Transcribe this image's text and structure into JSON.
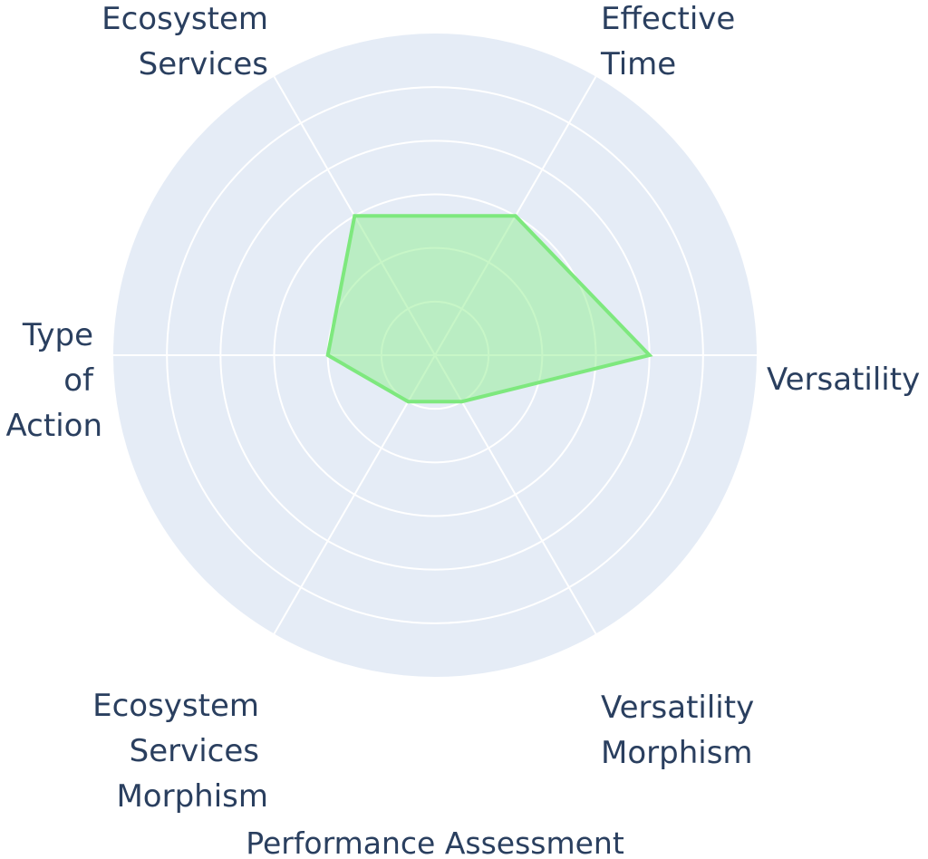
{
  "chart_data": {
    "type": "radar",
    "title": "Performance Assessment",
    "axes": [
      "Versatility",
      "Effective Time",
      "Ecosystem Services",
      "Type of Action",
      "Ecosystem Services Morphism",
      "Versatility Morphism"
    ],
    "series": [
      {
        "values": [
          4,
          3,
          3,
          2,
          1,
          1
        ]
      }
    ],
    "rlim": [
      0,
      6
    ],
    "ring_count": 6,
    "grid": true,
    "colors": {
      "fill": "#90ee90",
      "line": "#7ee87e",
      "background": "#e5ecf6",
      "grid": "#ffffff",
      "text": "#2a3f5f"
    }
  }
}
